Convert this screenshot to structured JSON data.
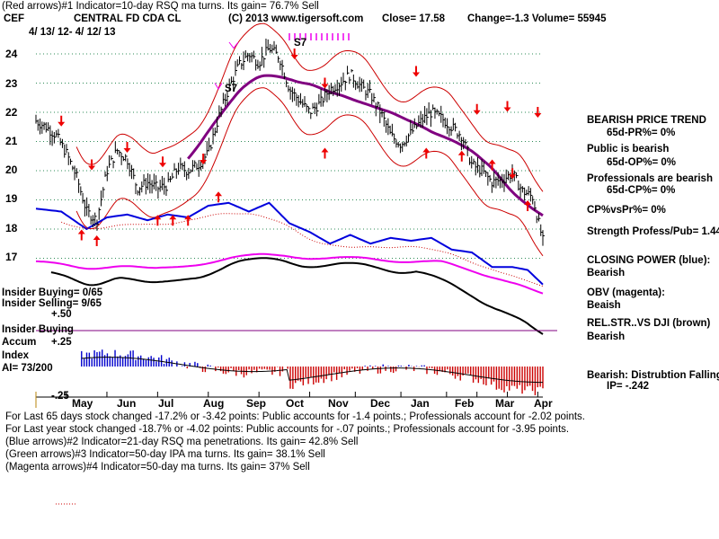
{
  "header": {
    "line1": "(Red arrows)#1 Indicator=10-day RSQ ma turns. Its gain= 76.7% Sell",
    "ticker": "CEF",
    "name": "CENTRAL FD CDA CL",
    "copyright": "(C) 2013 www.tigersoft.com",
    "close": "Close= 17.58",
    "change": "Change=-1.3 Volume= 55945",
    "range": "4/ 13/ 12- 4/ 12/ 13"
  },
  "left_labels": {
    "insider_buying_ratio": "Insider Buying= 0/65",
    "insider_selling_ratio": "Insider Selling= 9/65",
    "plus50": "+.50",
    "insider_buying": "Insider Buying",
    "accum": "Accum",
    "plus25": "+.25",
    "index": "Index",
    "ai": "AI= 73/200",
    "minus25": "-.25"
  },
  "signals": {
    "s7a": "S7",
    "s7b": "S7"
  },
  "right_panel": {
    "bearish_trend": "BEARISH PRICE TREND",
    "pr": "65d-PR%= 0%",
    "public_bearish": "Public is bearish",
    "op": "65d-OP%= 0%",
    "pros_bearish": "Professionals are bearish",
    "cp": "65d-CP%= 0%",
    "cpvspr": "CP%vsPr%=  0%",
    "strength": "Strength Profess/Pub= 1.44",
    "closing_power": "CLOSING POWER (blue):",
    "cp_state": "Bearish",
    "obv": "OBV (magenta):",
    "obv_state": "Beaish",
    "relstr": "REL.STR..VS DJI (brown)",
    "relstr_state": "Bearish",
    "distribution": "Bearish: Distrubtion Falling",
    "ip": "IP= -.242"
  },
  "footer": {
    "l1": "For Last 65 days stock changed -17.2% or -3.42 points:  Public accounts for -1.4 points.;  Professionals account for -2.02 points.",
    "l2": "For Last year stock changed -18.7% or -4.02 points:  Public accounts for -.07 points.;  Professionals account for -3.95 points.",
    "l3": "(Blue arrows)#2 Indicator=21-day RSQ ma penetrations. Its gain= 42.8% Sell",
    "l4": "(Green arrows)#3 Indicator=50-day IPA ma turns. Its gain= 38.1% Sell",
    "l5": "(Magenta arrows)#4 Indicator=50-day ma turns. Its gain= 37% Sell"
  },
  "chart_data": {
    "type": "line",
    "title": "CENTRAL FD CDA CL (CEF) 4/13/12 - 4/12/13",
    "y_ticks": [
      17,
      18,
      19,
      20,
      21,
      22,
      23,
      24
    ],
    "ylim": [
      16.6,
      24.8
    ],
    "months": [
      "May",
      "Jun",
      "Jul",
      "Aug",
      "Sep",
      "Oct",
      "Nov",
      "Dec",
      "Jan",
      "Feb",
      "Mar",
      "Apr"
    ],
    "month_positions": [
      0.06,
      0.14,
      0.24,
      0.34,
      0.44,
      0.54,
      0.63,
      0.72,
      0.81,
      0.87,
      0.93,
      0.99
    ],
    "price": [
      [
        0.0,
        21.7
      ],
      [
        0.02,
        21.5
      ],
      [
        0.04,
        21.2
      ],
      [
        0.06,
        20.6
      ],
      [
        0.08,
        19.8
      ],
      [
        0.1,
        18.6
      ],
      [
        0.12,
        18.3
      ],
      [
        0.14,
        20.0
      ],
      [
        0.16,
        20.7
      ],
      [
        0.18,
        20.4
      ],
      [
        0.2,
        19.4
      ],
      [
        0.22,
        19.6
      ],
      [
        0.24,
        19.4
      ],
      [
        0.26,
        19.5
      ],
      [
        0.28,
        20.1
      ],
      [
        0.3,
        20.0
      ],
      [
        0.32,
        20.2
      ],
      [
        0.34,
        20.6
      ],
      [
        0.36,
        21.8
      ],
      [
        0.38,
        22.8
      ],
      [
        0.4,
        23.6
      ],
      [
        0.42,
        24.0
      ],
      [
        0.44,
        23.7
      ],
      [
        0.46,
        24.2
      ],
      [
        0.48,
        23.9
      ],
      [
        0.5,
        22.8
      ],
      [
        0.52,
        22.4
      ],
      [
        0.54,
        22.0
      ],
      [
        0.56,
        22.3
      ],
      [
        0.58,
        22.8
      ],
      [
        0.6,
        23.0
      ],
      [
        0.62,
        23.3
      ],
      [
        0.64,
        22.9
      ],
      [
        0.66,
        22.6
      ],
      [
        0.68,
        22.0
      ],
      [
        0.7,
        21.2
      ],
      [
        0.72,
        20.9
      ],
      [
        0.74,
        21.3
      ],
      [
        0.76,
        21.7
      ],
      [
        0.78,
        22.0
      ],
      [
        0.8,
        21.8
      ],
      [
        0.82,
        21.5
      ],
      [
        0.84,
        21.2
      ],
      [
        0.86,
        20.2
      ],
      [
        0.88,
        20.0
      ],
      [
        0.9,
        19.6
      ],
      [
        0.92,
        19.7
      ],
      [
        0.94,
        19.9
      ],
      [
        0.96,
        19.3
      ],
      [
        0.98,
        19.1
      ],
      [
        1.0,
        17.6
      ]
    ],
    "closing_power": [
      [
        0.0,
        18.7
      ],
      [
        0.05,
        18.6
      ],
      [
        0.1,
        18.0
      ],
      [
        0.14,
        18.4
      ],
      [
        0.18,
        18.5
      ],
      [
        0.22,
        18.3
      ],
      [
        0.26,
        18.5
      ],
      [
        0.3,
        18.4
      ],
      [
        0.34,
        18.8
      ],
      [
        0.38,
        18.9
      ],
      [
        0.42,
        18.6
      ],
      [
        0.46,
        18.9
      ],
      [
        0.5,
        18.2
      ],
      [
        0.54,
        17.9
      ],
      [
        0.58,
        17.5
      ],
      [
        0.62,
        17.8
      ],
      [
        0.66,
        17.5
      ],
      [
        0.7,
        17.7
      ],
      [
        0.74,
        17.6
      ],
      [
        0.78,
        17.7
      ],
      [
        0.82,
        17.3
      ],
      [
        0.86,
        17.2
      ],
      [
        0.9,
        16.7
      ],
      [
        0.94,
        16.7
      ],
      [
        0.97,
        16.6
      ],
      [
        1.0,
        16.1
      ]
    ]
  }
}
